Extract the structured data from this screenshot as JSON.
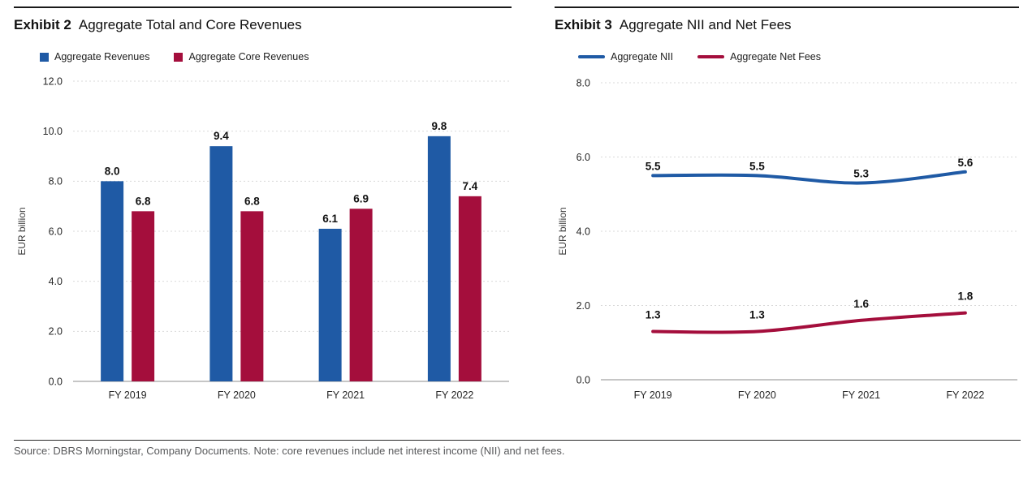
{
  "palette": {
    "blue": "#1F5AA5",
    "crimson": "#A40E3C",
    "grid": "#d9d9d9",
    "axis": "#8c8c8c",
    "tick_text": "#262626",
    "value_label_text": "#111111",
    "ylabel_text": "#3c3c3c",
    "rule": "#1a1a1a",
    "source_text": "#58595b"
  },
  "chart_data": [
    {
      "type": "bar",
      "exhibit_label": "Exhibit 2",
      "title": "Aggregate Total and Core Revenues",
      "categories": [
        "FY 2019",
        "FY 2020",
        "FY 2021",
        "FY 2022"
      ],
      "series": [
        {
          "name": "Aggregate Revenues",
          "color": "#1F5AA5",
          "values": [
            8.0,
            9.4,
            6.1,
            9.8
          ]
        },
        {
          "name": "Aggregate Core Revenues",
          "color": "#A40E3C",
          "values": [
            6.8,
            6.8,
            6.9,
            7.4
          ]
        }
      ],
      "xlabel": "",
      "ylabel": "EUR billion",
      "ylim": [
        0,
        12
      ],
      "ytick_labels": [
        "0.0",
        "2.0",
        "4.0",
        "6.0",
        "8.0",
        "10.0",
        "12.0"
      ],
      "grid": "horizontal-dashed",
      "legend_position": "top-left",
      "value_labels": true
    },
    {
      "type": "line",
      "exhibit_label": "Exhibit 3",
      "title": "Aggregate NII and Net Fees",
      "categories": [
        "FY 2019",
        "FY 2020",
        "FY 2021",
        "FY 2022"
      ],
      "series": [
        {
          "name": "Aggregate NII",
          "color": "#1F5AA5",
          "values": [
            5.5,
            5.5,
            5.3,
            5.6
          ]
        },
        {
          "name": "Aggregate Net Fees",
          "color": "#A40E3C",
          "values": [
            1.3,
            1.3,
            1.6,
            1.8
          ]
        }
      ],
      "xlabel": "",
      "ylabel": "EUR billion",
      "ylim": [
        0,
        8
      ],
      "ytick_labels": [
        "0.0",
        "2.0",
        "4.0",
        "6.0",
        "8.0"
      ],
      "grid": "horizontal-dashed",
      "legend_position": "top-left",
      "smooth": true,
      "value_labels": true
    }
  ],
  "footer": {
    "source": "Source: DBRS Morningstar, Company Documents. Note: core revenues include net interest income (NII) and net fees."
  }
}
